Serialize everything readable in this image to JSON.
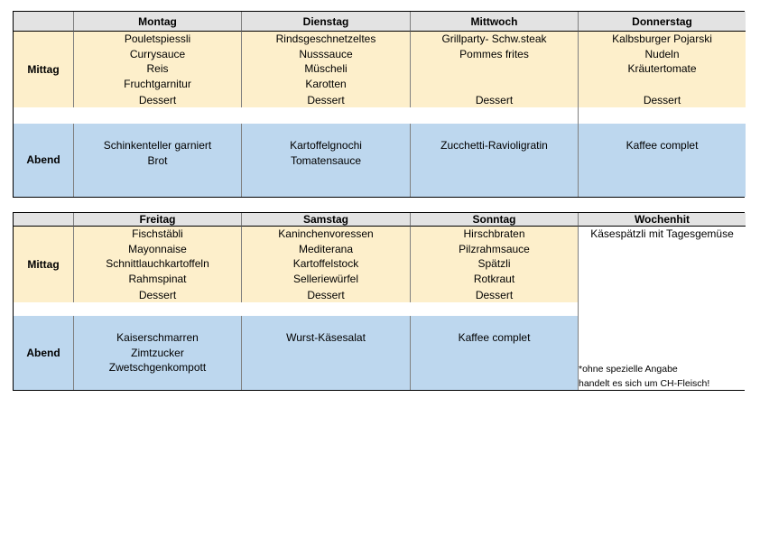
{
  "row_labels": {
    "lunch": "Mittag",
    "dinner": "Abend"
  },
  "week1": {
    "days": [
      {
        "name": "Montag",
        "lunch": [
          "Pouletspiessli",
          "Currysauce",
          "Reis",
          "Fruchtgarnitur"
        ],
        "dessert": "Dessert",
        "dinner": [
          "Schinkenteller garniert",
          "Brot"
        ]
      },
      {
        "name": "Dienstag",
        "lunch": [
          "Rindsgeschnetzeltes",
          "Nusssauce",
          "Müscheli",
          "Karotten"
        ],
        "dessert": "Dessert",
        "dinner": [
          "Kartoffelgnochi",
          "Tomatensauce"
        ]
      },
      {
        "name": "Mittwoch",
        "lunch": [
          "Grillparty- Schw.steak",
          "Pommes frites",
          "",
          ""
        ],
        "dessert": "Dessert",
        "dinner": [
          "Zucchetti-Ravioligratin"
        ]
      },
      {
        "name": "Donnerstag",
        "lunch": [
          "Kalbsburger Pojarski",
          "Nudeln",
          "Kräutertomate",
          ""
        ],
        "dessert": "Dessert",
        "dinner": [
          "Kaffee complet"
        ]
      }
    ]
  },
  "week2": {
    "days": [
      {
        "name": "Freitag",
        "lunch": [
          "Fischstäbli",
          "Mayonnaise",
          "Schnittlauchkartoffeln",
          "Rahmspinat"
        ],
        "dessert": "Dessert",
        "dinner": [
          "Kaiserschmarren",
          "Zimtzucker",
          "Zwetschgenkompott"
        ]
      },
      {
        "name": "Samstag",
        "lunch": [
          "Kaninchenvoressen",
          "Mediterana",
          "Kartoffelstock",
          "Selleriewürfel"
        ],
        "dessert": "Dessert",
        "dinner": [
          "Wurst-Käsesalat"
        ]
      },
      {
        "name": "Sonntag",
        "lunch": [
          "Hirschbraten",
          "Pilzrahmsauce",
          "Spätzli",
          "Rotkraut"
        ],
        "dessert": "Dessert",
        "dinner": [
          "Kaffee complet"
        ]
      }
    ],
    "weekly_hit": {
      "title": "Wochenhit",
      "item": "Käsespätzli mit Tagesgemüse"
    }
  },
  "footnote": [
    "*ohne spezielle Angabe",
    "handelt es sich um CH-Fleisch!"
  ]
}
